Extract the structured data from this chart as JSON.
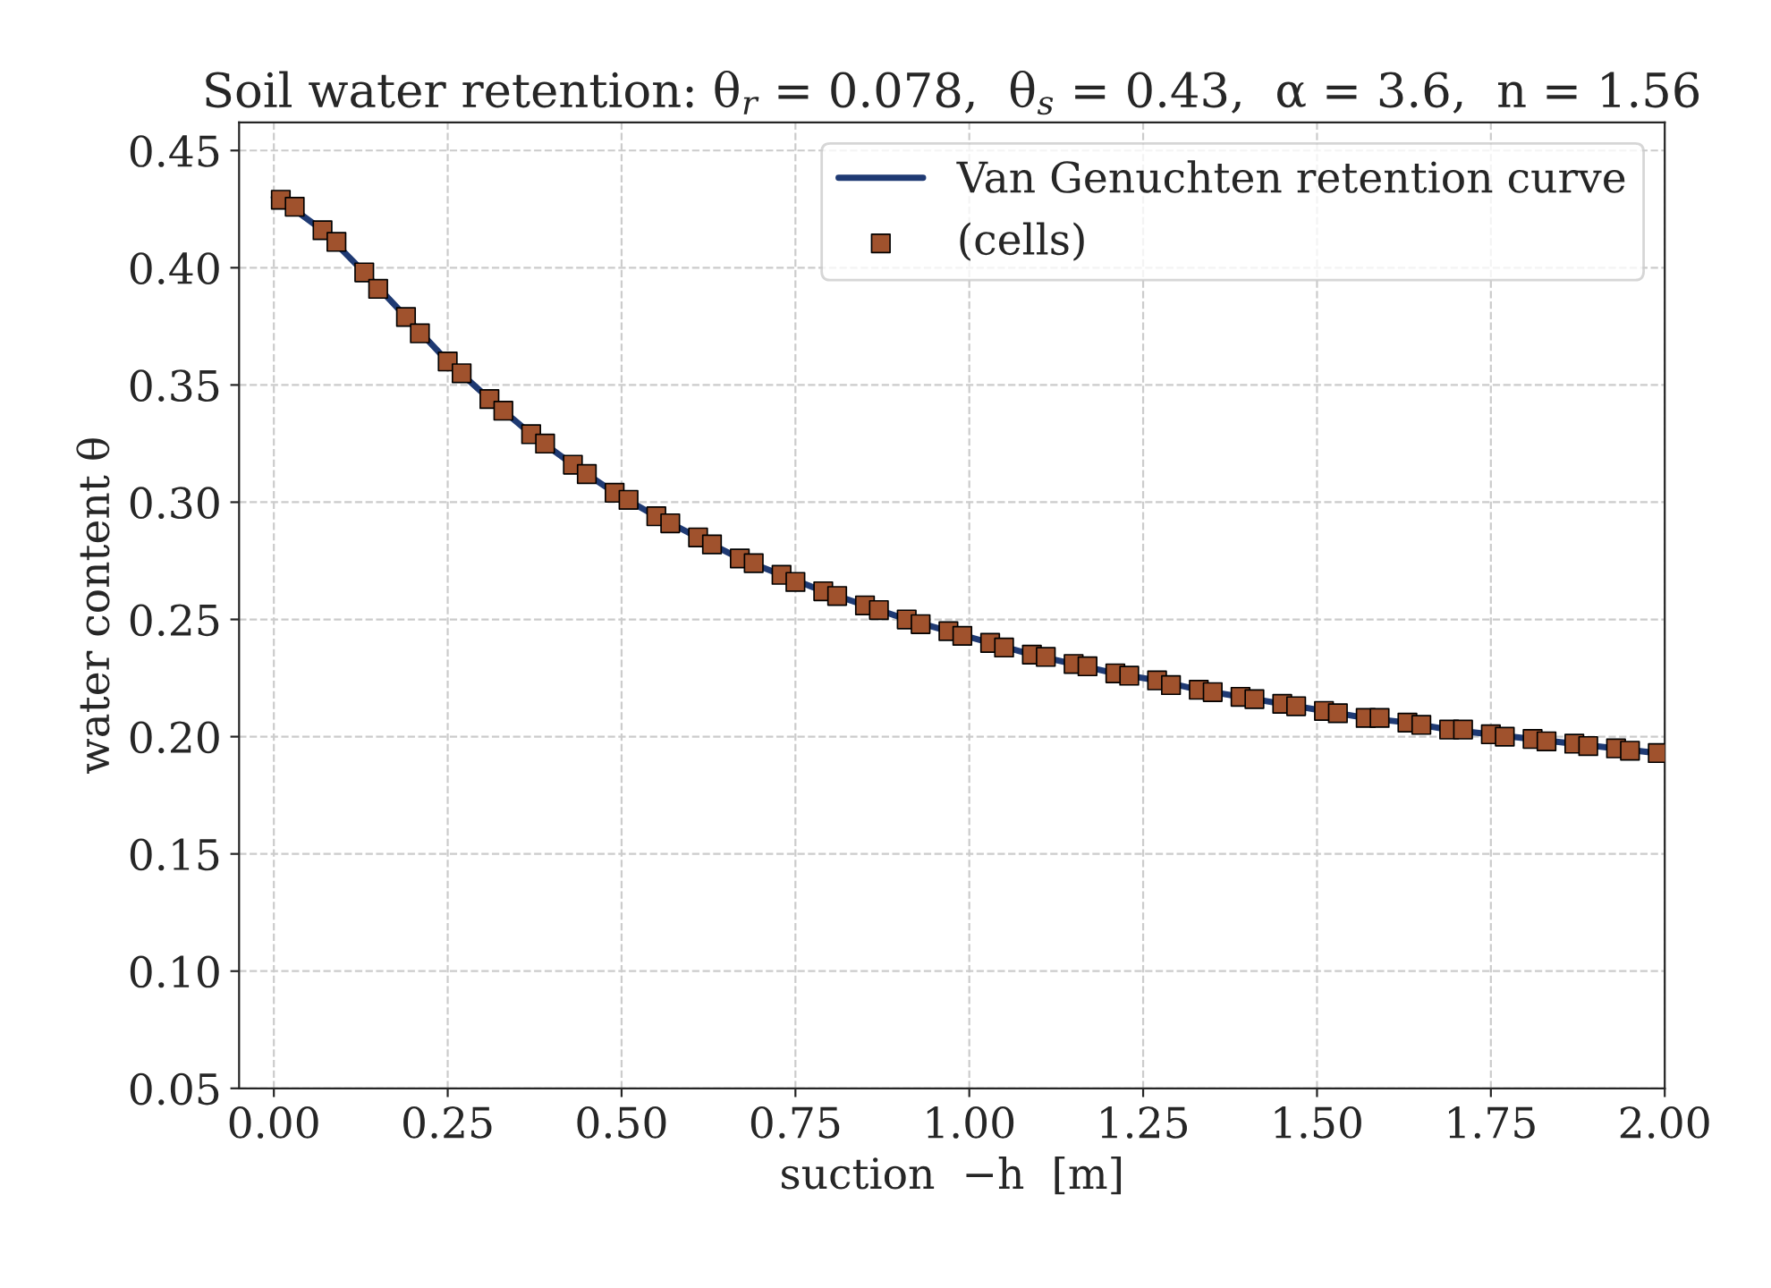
{
  "chart_data": {
    "type": "line",
    "title": "Soil water retention: θ$_{r}$ = 0.078,  θ$_{s}$ = 0.43,  α = 3.6,  n = 1.56",
    "xlabel": "suction  −h  [m]",
    "ylabel": "water content θ",
    "xlim": [
      -0.05,
      2.0
    ],
    "ylim": [
      0.05,
      0.462
    ],
    "xticks": [
      {
        "value": 0,
        "label": "0.00"
      },
      {
        "value": 0.25,
        "label": "0.25"
      },
      {
        "value": 0.5,
        "label": "0.50"
      },
      {
        "value": 0.75,
        "label": "0.75"
      },
      {
        "value": 1,
        "label": "1.00"
      },
      {
        "value": 1.25,
        "label": "1.25"
      },
      {
        "value": 1.5,
        "label": "1.50"
      },
      {
        "value": 1.75,
        "label": "1.75"
      },
      {
        "value": 2,
        "label": "2.00"
      }
    ],
    "yticks": [
      {
        "value": 0.05,
        "label": "0.05"
      },
      {
        "value": 0.1,
        "label": "0.10"
      },
      {
        "value": 0.15,
        "label": "0.15"
      },
      {
        "value": 0.2,
        "label": "0.20"
      },
      {
        "value": 0.25,
        "label": "0.25"
      },
      {
        "value": 0.3,
        "label": "0.30"
      },
      {
        "value": 0.35,
        "label": "0.35"
      },
      {
        "value": 0.4,
        "label": "0.40"
      },
      {
        "value": 0.45,
        "label": "0.45"
      }
    ],
    "grid": true,
    "legend": "top right",
    "series": [
      {
        "name": "Van Genuchten retention curve",
        "color": "#1f3a73",
        "marker": "none",
        "line_style": "solid",
        "x": [
          0,
          0.01,
          0.07,
          0.13,
          0.19,
          0.25,
          0.31,
          0.37,
          0.43,
          0.49,
          0.55,
          0.61,
          0.67,
          0.73,
          0.79,
          0.85,
          0.91,
          0.97,
          1.03,
          1.09,
          1.15,
          1.21,
          1.27,
          1.33,
          1.39,
          1.45,
          1.51,
          1.57,
          1.63,
          1.69,
          1.75,
          1.81,
          1.87,
          1.93,
          1.99,
          2.0
        ],
        "values": [
          0.43,
          0.429,
          0.416,
          0.398,
          0.379,
          0.36,
          0.344,
          0.329,
          0.316,
          0.304,
          0.294,
          0.285,
          0.276,
          0.269,
          0.262,
          0.256,
          0.25,
          0.245,
          0.24,
          0.235,
          0.231,
          0.227,
          0.224,
          0.22,
          0.217,
          0.214,
          0.211,
          0.208,
          0.206,
          0.203,
          0.201,
          0.199,
          0.197,
          0.195,
          0.193,
          0.193
        ]
      },
      {
        "name": "(cells)",
        "type": "scatter",
        "color": "#a0522d",
        "marker": "square",
        "x": [
          0.01,
          0.03,
          0.07,
          0.09,
          0.13,
          0.15,
          0.19,
          0.21,
          0.25,
          0.27,
          0.31,
          0.33,
          0.37,
          0.39,
          0.43,
          0.45,
          0.49,
          0.51,
          0.55,
          0.57,
          0.61,
          0.63,
          0.67,
          0.69,
          0.73,
          0.75,
          0.79,
          0.81,
          0.85,
          0.87,
          0.91,
          0.93,
          0.97,
          0.99,
          1.03,
          1.05,
          1.09,
          1.11,
          1.15,
          1.17,
          1.21,
          1.23,
          1.27,
          1.29,
          1.33,
          1.35,
          1.39,
          1.41,
          1.45,
          1.47,
          1.51,
          1.53,
          1.57,
          1.59,
          1.63,
          1.65,
          1.69,
          1.71,
          1.75,
          1.77,
          1.81,
          1.83,
          1.87,
          1.89,
          1.93,
          1.95,
          1.99
        ],
        "values": [
          0.429,
          0.426,
          0.416,
          0.411,
          0.398,
          0.391,
          0.379,
          0.372,
          0.36,
          0.355,
          0.344,
          0.339,
          0.329,
          0.325,
          0.316,
          0.312,
          0.304,
          0.301,
          0.294,
          0.291,
          0.285,
          0.282,
          0.276,
          0.274,
          0.269,
          0.266,
          0.262,
          0.26,
          0.256,
          0.254,
          0.25,
          0.248,
          0.245,
          0.243,
          0.24,
          0.238,
          0.235,
          0.234,
          0.231,
          0.23,
          0.227,
          0.226,
          0.224,
          0.222,
          0.22,
          0.219,
          0.217,
          0.216,
          0.214,
          0.213,
          0.211,
          0.21,
          0.208,
          0.208,
          0.206,
          0.205,
          0.203,
          0.203,
          0.201,
          0.2,
          0.199,
          0.198,
          0.197,
          0.196,
          0.195,
          0.194,
          0.193
        ]
      }
    ]
  }
}
